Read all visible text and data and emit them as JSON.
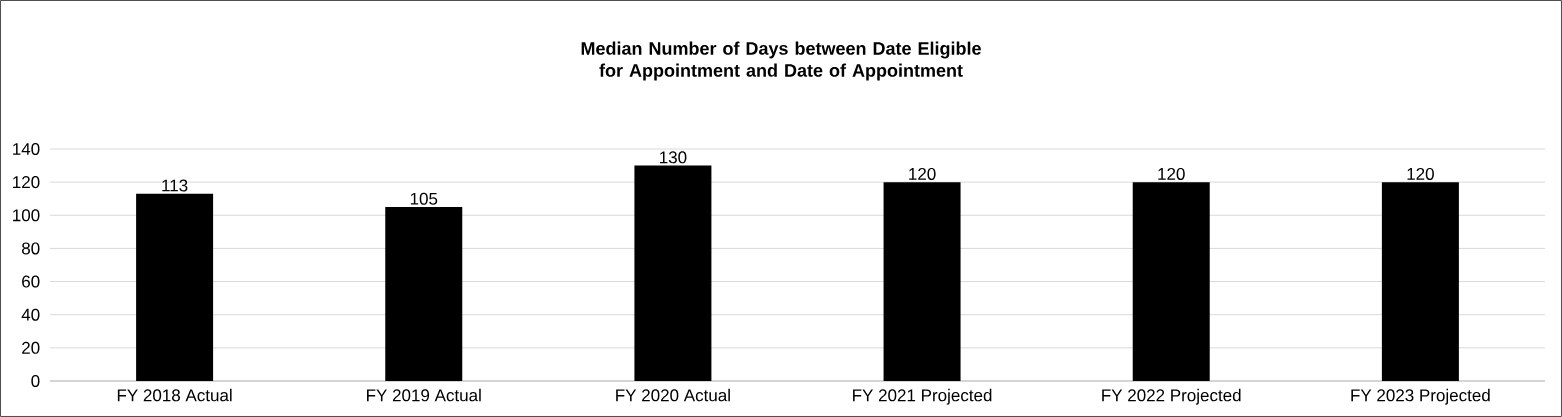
{
  "chart_data": {
    "type": "bar",
    "title": "Median Number of Days between Date Eligible for Appointment and Date of Appointment",
    "categories": [
      "FY 2018 Actual",
      "FY 2019 Actual",
      "FY 2020 Actual",
      "FY 2021 Projected",
      "FY 2022 Projected",
      "FY 2023 Projected"
    ],
    "values": [
      113,
      105,
      130,
      120,
      120,
      120
    ],
    "color": "#000000",
    "ylim": [
      0,
      140
    ],
    "yticks": [
      0,
      20,
      40,
      60,
      80,
      100,
      120,
      140
    ],
    "grid": "y",
    "data_labels": true
  }
}
